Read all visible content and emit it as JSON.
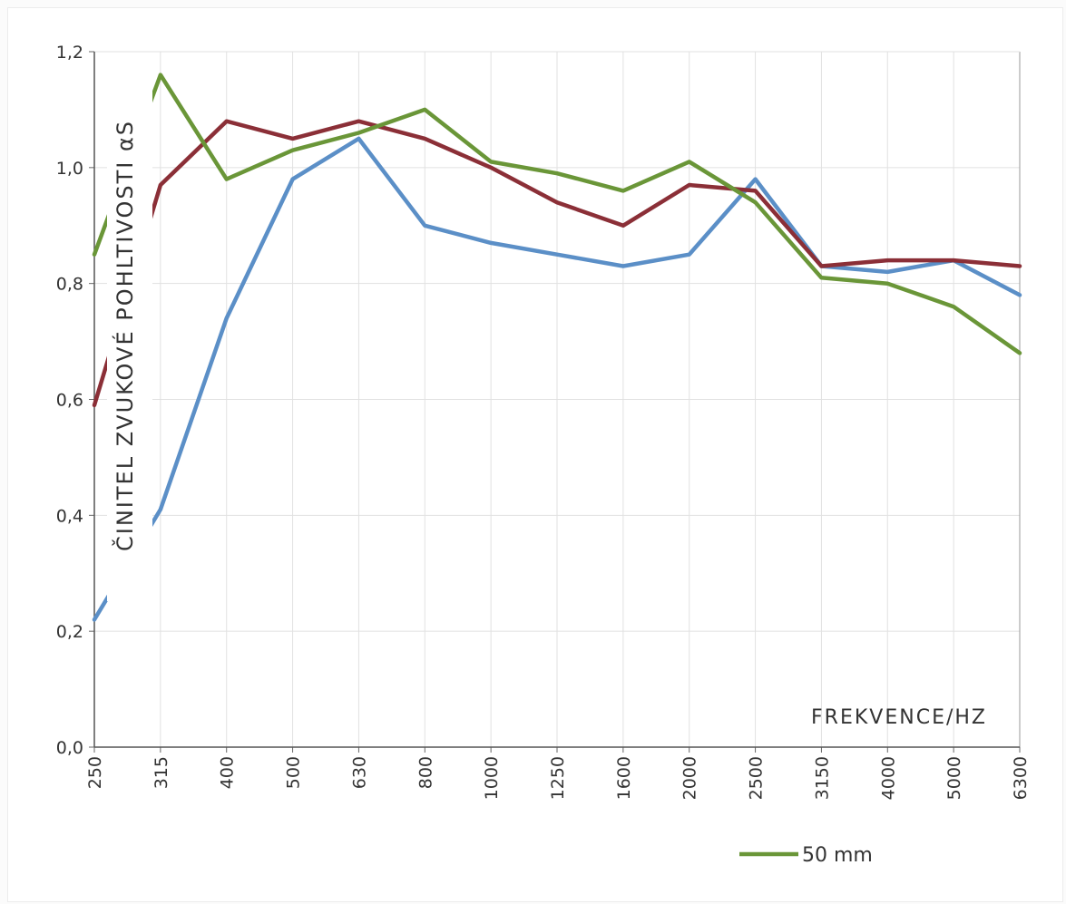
{
  "chart_data": {
    "type": "line",
    "title": "",
    "xlabel": "FREKVENCE/HZ",
    "ylabel": "ČINITEL ZVUKOVÉ POHLTIVOSTI αS",
    "categories": [
      "250",
      "315",
      "400",
      "500",
      "630",
      "800",
      "1000",
      "1250",
      "1600",
      "2000",
      "2500",
      "3150",
      "4000",
      "5000",
      "6300"
    ],
    "ylim": [
      0,
      1.2
    ],
    "yticks": [
      "0,0",
      "0,2",
      "0,4",
      "0,6",
      "0,8",
      "1,0",
      "1,2"
    ],
    "grid": true,
    "legend_position": "bottom-right",
    "series": [
      {
        "color": "#5b8fc7",
        "values": [
          0.22,
          0.41,
          0.74,
          0.98,
          1.05,
          0.9,
          0.87,
          0.85,
          0.83,
          0.85,
          0.98,
          0.83,
          0.82,
          0.84,
          0.78
        ]
      },
      {
        "color": "#8b2f37",
        "values": [
          0.59,
          0.97,
          1.08,
          1.05,
          1.08,
          1.05,
          1.0,
          0.94,
          0.9,
          0.97,
          0.96,
          0.83,
          0.84,
          0.84,
          0.83
        ]
      },
      {
        "name": "50 mm",
        "color": "#6a9638",
        "values": [
          0.85,
          1.16,
          0.98,
          1.03,
          1.06,
          1.1,
          1.01,
          0.99,
          0.96,
          1.01,
          0.94,
          0.81,
          0.8,
          0.76,
          0.68
        ]
      }
    ]
  }
}
